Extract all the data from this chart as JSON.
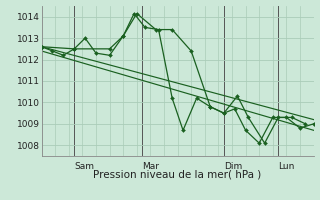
{
  "xlabel": "Pression niveau de la mer( hPa )",
  "ylim": [
    1007.5,
    1014.5
  ],
  "yticks": [
    1008,
    1009,
    1010,
    1011,
    1012,
    1013,
    1014
  ],
  "xtick_labels": [
    "Sam",
    "Mar",
    "Dim",
    "Lun"
  ],
  "xtick_positions": [
    0.12,
    0.37,
    0.67,
    0.87
  ],
  "xvline_positions": [
    0.12,
    0.37,
    0.67,
    0.87
  ],
  "xlim": [
    0.0,
    1.0
  ],
  "bg_color": "#cce8d8",
  "grid_major_color": "#aaccb8",
  "grid_minor_color": "#bbddc8",
  "line_color": "#1a6020",
  "series": {
    "line1": {
      "x": [
        0.0,
        0.04,
        0.08,
        0.12,
        0.16,
        0.2,
        0.25,
        0.3,
        0.34,
        0.38,
        0.43,
        0.48,
        0.52,
        0.57,
        0.62,
        0.67,
        0.71,
        0.75,
        0.8,
        0.85,
        0.9,
        0.95,
        1.0
      ],
      "y": [
        1012.6,
        1012.4,
        1012.2,
        1012.5,
        1013.0,
        1012.3,
        1012.2,
        1013.1,
        1014.15,
        1013.5,
        1013.4,
        1010.2,
        1008.7,
        1010.2,
        1009.8,
        1009.5,
        1009.7,
        1008.7,
        1008.1,
        1009.3,
        1009.3,
        1008.8,
        1009.0
      ]
    },
    "line2": {
      "x": [
        0.0,
        0.12,
        0.25,
        0.3,
        0.35,
        0.42,
        0.48,
        0.55,
        0.62,
        0.67,
        0.72,
        0.76,
        0.82,
        0.87,
        0.92,
        0.97
      ],
      "y": [
        1012.6,
        1012.5,
        1012.5,
        1013.1,
        1014.15,
        1013.4,
        1013.4,
        1012.4,
        1009.8,
        1009.5,
        1010.3,
        1009.3,
        1008.1,
        1009.3,
        1009.3,
        1009.0
      ]
    },
    "trend1": {
      "x": [
        0.0,
        1.0
      ],
      "y": [
        1012.6,
        1009.2
      ]
    },
    "trend2": {
      "x": [
        0.0,
        1.0
      ],
      "y": [
        1012.4,
        1008.7
      ]
    }
  },
  "figsize": [
    3.2,
    2.0
  ],
  "dpi": 100
}
